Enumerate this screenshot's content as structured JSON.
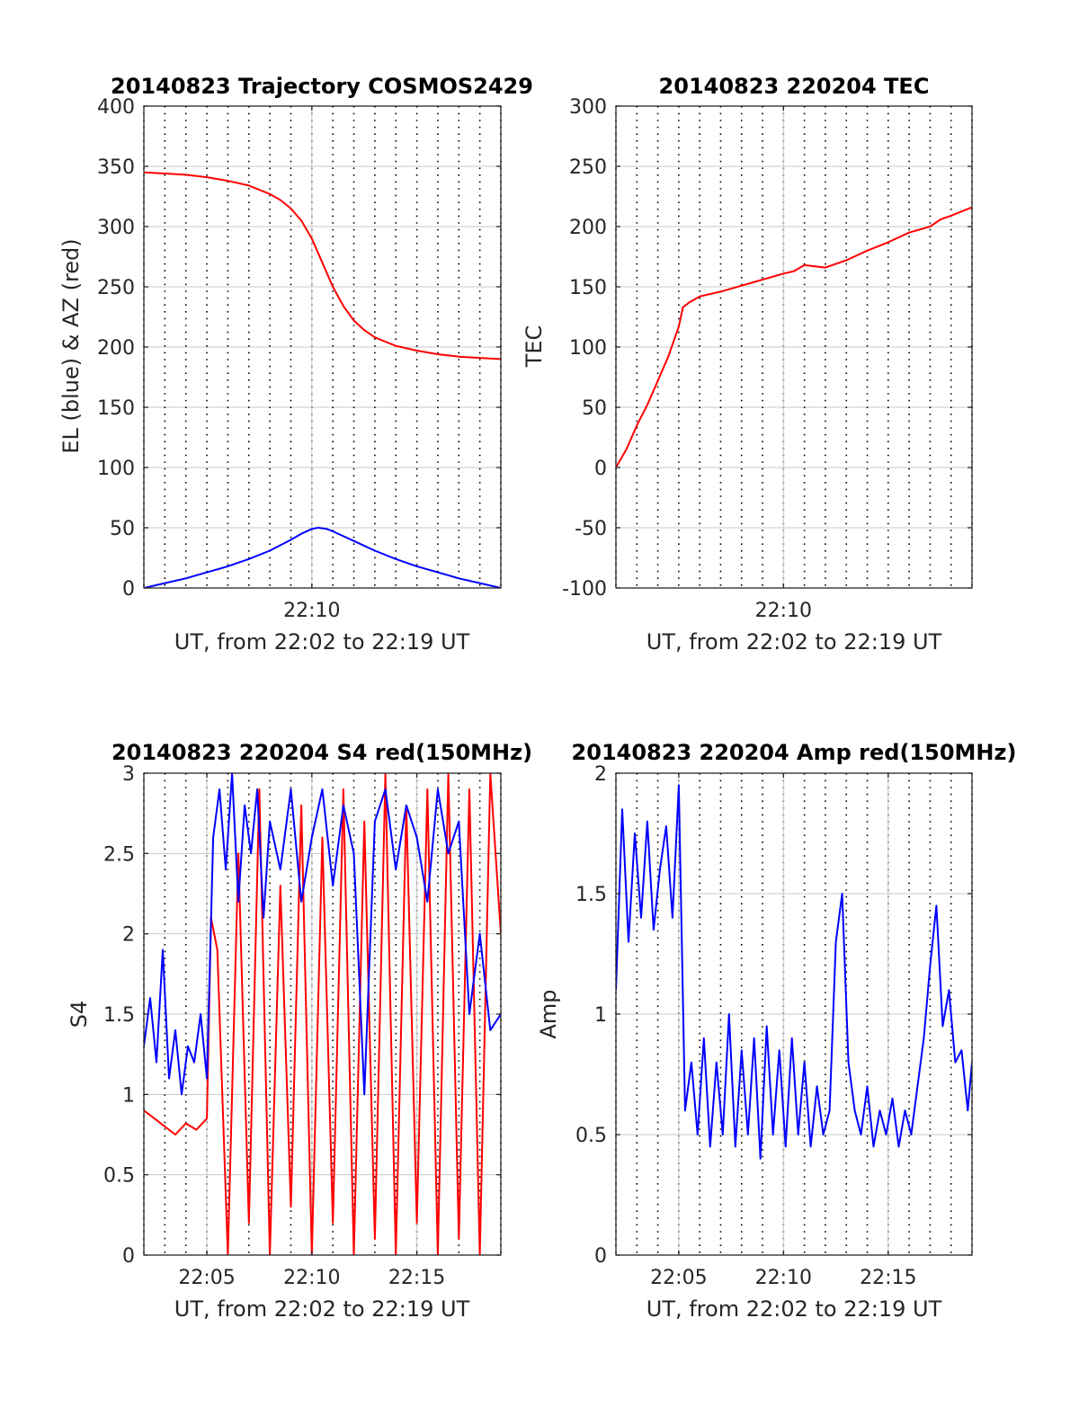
{
  "colors": {
    "red": "#ff0000",
    "blue": "#0000ff",
    "axis": "#262626",
    "grid": "#c8c8c8"
  },
  "chart_data": [
    {
      "type": "line",
      "title": "20140823 Trajectory COSMOS2429",
      "xlabel": "UT, from 22:02 to 22:19 UT",
      "ylabel": "EL (blue) & AZ (red)",
      "xlim": [
        2.0,
        19.0
      ],
      "ylim": [
        0,
        400
      ],
      "yticks": [
        0,
        50,
        100,
        150,
        200,
        250,
        300,
        350,
        400
      ],
      "ytick_labels": [
        "0",
        "50",
        "100",
        "150",
        "200",
        "250",
        "300",
        "350",
        "400"
      ],
      "xticks": [
        10
      ],
      "xtick_labels": [
        "22:10"
      ],
      "minor_xgrid_step": 1,
      "grid": true,
      "series": [
        {
          "color": "#ff0000",
          "x": [
            2,
            3,
            4,
            5,
            6,
            7,
            8,
            8.5,
            9,
            9.5,
            10,
            10.5,
            11,
            11.5,
            12,
            12.5,
            13,
            14,
            15,
            16,
            17,
            18,
            19
          ],
          "y": [
            345,
            344,
            343,
            341,
            338,
            334,
            327,
            322,
            315,
            305,
            290,
            270,
            250,
            234,
            222,
            214,
            208,
            201,
            197,
            194,
            192,
            191,
            190
          ]
        },
        {
          "color": "#0000ff",
          "x": [
            2,
            3,
            4,
            5,
            6,
            7,
            8,
            9,
            9.5,
            10,
            10.3,
            10.7,
            11,
            12,
            13,
            14,
            15,
            16,
            17,
            18,
            19
          ],
          "y": [
            0,
            4,
            8,
            13,
            18,
            24,
            31,
            40,
            45,
            49,
            50,
            49,
            47,
            39,
            31,
            24,
            18,
            13,
            8,
            4,
            0
          ]
        }
      ]
    },
    {
      "type": "line",
      "title": "20140823 220204 TEC",
      "xlabel": "UT, from 22:02 to 22:19 UT",
      "ylabel": "TEC",
      "xlim": [
        2.0,
        19.0
      ],
      "ylim": [
        -100,
        300
      ],
      "yticks": [
        -100,
        -50,
        0,
        50,
        100,
        150,
        200,
        250,
        300
      ],
      "ytick_labels": [
        "-100",
        "-50",
        "0",
        "50",
        "100",
        "150",
        "200",
        "250",
        "300"
      ],
      "xticks": [
        10
      ],
      "xtick_labels": [
        "22:10"
      ],
      "minor_xgrid_step": 1,
      "grid": true,
      "series": [
        {
          "color": "#ff0000",
          "x": [
            2,
            2.5,
            3,
            3.5,
            4,
            4.5,
            5,
            5.2,
            5.5,
            6,
            7,
            8,
            9,
            10,
            10.5,
            11,
            12,
            13,
            14,
            15,
            16,
            17,
            17.5,
            18,
            19
          ],
          "y": [
            0,
            15,
            35,
            52,
            72,
            92,
            117,
            133,
            137,
            142,
            146,
            151,
            156,
            161,
            163,
            168,
            166,
            172,
            180,
            187,
            195,
            200,
            206,
            209,
            216
          ]
        }
      ]
    },
    {
      "type": "line",
      "title": "20140823 220204 S4 red(150MHz)",
      "xlabel": "UT, from 22:02 to 22:19 UT",
      "ylabel": "S4",
      "xlim": [
        2.0,
        19.0
      ],
      "ylim": [
        0,
        3
      ],
      "yticks": [
        0,
        0.5,
        1,
        1.5,
        2,
        2.5,
        3
      ],
      "ytick_labels": [
        "0",
        "0.5",
        "1",
        "1.5",
        "2",
        "2.5",
        "3"
      ],
      "xticks": [
        5,
        10,
        15
      ],
      "xtick_labels": [
        "22:05",
        "22:10",
        "22:15"
      ],
      "minor_xgrid_step": 1,
      "grid": true,
      "series": [
        {
          "color": "#ff0000",
          "x": [
            2,
            2.5,
            3,
            3.5,
            4,
            4.5,
            5,
            5.2,
            5.5,
            6,
            6.5,
            7,
            7.5,
            8,
            8.5,
            9,
            9.5,
            10,
            10.5,
            11,
            11.5,
            12,
            12.5,
            13,
            13.5,
            14,
            14.5,
            15,
            15.5,
            16,
            16.5,
            17,
            17.5,
            18,
            18.5,
            19
          ],
          "y": [
            0.9,
            0.85,
            0.8,
            0.75,
            0.82,
            0.78,
            0.85,
            2.1,
            1.9,
            0,
            2.5,
            0.2,
            2.9,
            0,
            2.3,
            0.3,
            2.8,
            0,
            2.6,
            0.2,
            2.9,
            0,
            2.7,
            0.1,
            3.0,
            0,
            2.8,
            0.2,
            2.9,
            0,
            3.0,
            0.1,
            2.9,
            0,
            3.0,
            2.0
          ]
        },
        {
          "color": "#0000ff",
          "x": [
            2,
            2.3,
            2.6,
            2.9,
            3.2,
            3.5,
            3.8,
            4.1,
            4.4,
            4.7,
            5,
            5.3,
            5.6,
            5.9,
            6.2,
            6.5,
            6.8,
            7.1,
            7.4,
            7.7,
            8,
            8.5,
            9,
            9.5,
            10,
            10.5,
            11,
            11.5,
            12,
            12.5,
            13,
            13.5,
            14,
            14.5,
            15,
            15.5,
            16,
            16.5,
            17,
            17.5,
            18,
            18.5,
            19
          ],
          "y": [
            1.3,
            1.6,
            1.2,
            1.9,
            1.1,
            1.4,
            1.0,
            1.3,
            1.2,
            1.5,
            1.1,
            2.6,
            2.9,
            2.4,
            3.0,
            2.2,
            2.8,
            2.5,
            2.9,
            2.1,
            2.7,
            2.4,
            2.9,
            2.2,
            2.6,
            2.9,
            2.3,
            2.8,
            2.5,
            1.0,
            2.7,
            2.9,
            2.4,
            2.8,
            2.6,
            2.2,
            2.9,
            2.5,
            2.7,
            1.5,
            2.0,
            1.4,
            1.5
          ]
        }
      ]
    },
    {
      "type": "line",
      "title": "20140823 220204 Amp red(150MHz)",
      "xlabel": "UT, from 22:02 to 22:19 UT",
      "ylabel": "Amp",
      "xlim": [
        2.0,
        19.0
      ],
      "ylim": [
        0,
        2
      ],
      "yticks": [
        0,
        0.5,
        1,
        1.5,
        2
      ],
      "ytick_labels": [
        "0",
        "0.5",
        "1",
        "1.5",
        "2"
      ],
      "xticks": [
        5,
        10,
        15
      ],
      "xtick_labels": [
        "22:05",
        "22:10",
        "22:15"
      ],
      "minor_xgrid_step": 1,
      "grid": true,
      "series": [
        {
          "color": "#0000ff",
          "x": [
            2,
            2.3,
            2.6,
            2.9,
            3.2,
            3.5,
            3.8,
            4.1,
            4.4,
            4.7,
            5,
            5.3,
            5.6,
            5.9,
            6.2,
            6.5,
            6.8,
            7.1,
            7.4,
            7.7,
            8,
            8.3,
            8.6,
            8.9,
            9.2,
            9.5,
            9.8,
            10.1,
            10.4,
            10.7,
            11,
            11.3,
            11.6,
            11.9,
            12.2,
            12.5,
            12.8,
            13.1,
            13.4,
            13.7,
            14,
            14.3,
            14.6,
            14.9,
            15.2,
            15.5,
            15.8,
            16.1,
            16.4,
            16.7,
            17,
            17.3,
            17.6,
            17.9,
            18.2,
            18.5,
            18.8,
            19
          ],
          "y": [
            1.1,
            1.85,
            1.3,
            1.75,
            1.4,
            1.8,
            1.35,
            1.6,
            1.78,
            1.4,
            1.95,
            0.6,
            0.8,
            0.5,
            0.9,
            0.45,
            0.8,
            0.5,
            1.0,
            0.45,
            0.85,
            0.5,
            0.9,
            0.4,
            0.95,
            0.5,
            0.85,
            0.45,
            0.9,
            0.5,
            0.8,
            0.45,
            0.7,
            0.5,
            0.6,
            1.3,
            1.5,
            0.8,
            0.6,
            0.5,
            0.7,
            0.45,
            0.6,
            0.5,
            0.65,
            0.45,
            0.6,
            0.5,
            0.7,
            0.9,
            1.2,
            1.45,
            0.95,
            1.1,
            0.8,
            0.85,
            0.6,
            0.8
          ]
        }
      ]
    }
  ]
}
